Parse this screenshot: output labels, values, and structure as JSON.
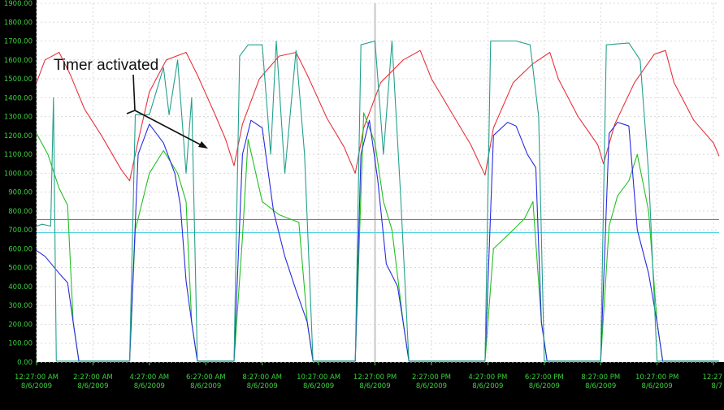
{
  "chart_data": {
    "type": "line",
    "title": "",
    "xlabel": "",
    "ylabel": "",
    "annotation": "Timer activated",
    "colors": {
      "background": "#ffffff",
      "axis_band": "#000000",
      "tick_text": "#3cd23c",
      "grid": "#d8d8d8",
      "cursor": "#c8c8c8",
      "red": "#e8323c",
      "blue": "#2a2ae0",
      "teal": "#23a08c",
      "green": "#23c023",
      "magenta": "#e632e6",
      "cyan": "#50d2e6"
    },
    "grid": true,
    "ylim": [
      0,
      1900
    ],
    "yticks": [
      "0.00",
      "100.00",
      "200.00",
      "300.00",
      "400.00",
      "500.00",
      "600.00",
      "700.00",
      "800.00",
      "900.00",
      "1000.00",
      "1100.00",
      "1200.00",
      "1300.00",
      "1400.00",
      "1500.00",
      "1600.00",
      "1700.00",
      "1800.00",
      "1900.00"
    ],
    "xticks": [
      {
        "time": "12:27:00 AM",
        "date": "8/6/2009"
      },
      {
        "time": "2:27:00 AM",
        "date": "8/6/2009"
      },
      {
        "time": "4:27:00 AM",
        "date": "8/6/2009"
      },
      {
        "time": "6:27:00 AM",
        "date": "8/6/2009"
      },
      {
        "time": "8:27:00 AM",
        "date": "8/6/2009"
      },
      {
        "time": "10:27:00 AM",
        "date": "8/6/2009"
      },
      {
        "time": "12:27:00 PM",
        "date": "8/6/2009"
      },
      {
        "time": "2:27:00 PM",
        "date": "8/6/2009"
      },
      {
        "time": "4:27:00 PM",
        "date": "8/6/2009"
      },
      {
        "time": "6:27:00 PM",
        "date": "8/6/2009"
      },
      {
        "time": "8:27:00 PM",
        "date": "8/6/2009"
      },
      {
        "time": "10:27:00 PM",
        "date": "8/6/2009"
      },
      {
        "time": "12:27",
        "date": "8/7"
      }
    ],
    "xlim_hours": [
      0,
      24.2
    ],
    "cursor_hour": 12.0,
    "annotation_target_hours": [
      4.0,
      6.2
    ],
    "series": [
      {
        "color": "magenta",
        "values": [
          [
            0,
            755
          ],
          [
            24.2,
            755
          ]
        ]
      },
      {
        "color": "cyan",
        "values": [
          [
            0,
            685
          ],
          [
            24.2,
            685
          ]
        ]
      },
      {
        "color": "red",
        "values": [
          [
            0,
            1480
          ],
          [
            0.3,
            1600
          ],
          [
            0.8,
            1640
          ],
          [
            1.2,
            1520
          ],
          [
            1.7,
            1340
          ],
          [
            2.3,
            1200
          ],
          [
            3.0,
            1020
          ],
          [
            3.3,
            960
          ],
          [
            3.6,
            1170
          ],
          [
            4.0,
            1430
          ],
          [
            4.6,
            1600
          ],
          [
            5.3,
            1640
          ],
          [
            5.7,
            1520
          ],
          [
            6.3,
            1320
          ],
          [
            6.7,
            1180
          ],
          [
            7.0,
            1040
          ],
          [
            7.3,
            1260
          ],
          [
            7.9,
            1500
          ],
          [
            8.6,
            1620
          ],
          [
            9.2,
            1640
          ],
          [
            9.6,
            1520
          ],
          [
            10.3,
            1290
          ],
          [
            10.9,
            1140
          ],
          [
            11.3,
            1000
          ],
          [
            11.6,
            1240
          ],
          [
            12.2,
            1480
          ],
          [
            13.0,
            1600
          ],
          [
            13.6,
            1650
          ],
          [
            14.0,
            1500
          ],
          [
            14.8,
            1300
          ],
          [
            15.4,
            1150
          ],
          [
            15.9,
            990
          ],
          [
            16.2,
            1240
          ],
          [
            16.9,
            1480
          ],
          [
            17.6,
            1580
          ],
          [
            18.2,
            1640
          ],
          [
            18.5,
            1500
          ],
          [
            19.2,
            1300
          ],
          [
            19.9,
            1150
          ],
          [
            20.1,
            1050
          ],
          [
            20.5,
            1260
          ],
          [
            21.2,
            1480
          ],
          [
            21.9,
            1630
          ],
          [
            22.3,
            1650
          ],
          [
            22.6,
            1480
          ],
          [
            23.3,
            1280
          ],
          [
            24.0,
            1160
          ],
          [
            24.2,
            1090
          ]
        ]
      },
      {
        "color": "green",
        "values": [
          [
            0,
            1210
          ],
          [
            0.4,
            1100
          ],
          [
            0.8,
            920
          ],
          [
            1.1,
            830
          ],
          [
            1.3,
            210
          ],
          [
            1.5,
            5
          ],
          [
            3.3,
            5
          ],
          [
            3.5,
            700
          ],
          [
            4.0,
            1000
          ],
          [
            4.5,
            1120
          ],
          [
            5.0,
            1000
          ],
          [
            5.3,
            850
          ],
          [
            5.5,
            210
          ],
          [
            5.7,
            5
          ],
          [
            7.0,
            5
          ],
          [
            7.3,
            660
          ],
          [
            7.5,
            1180
          ],
          [
            8.0,
            850
          ],
          [
            8.6,
            780
          ],
          [
            9.3,
            740
          ],
          [
            9.6,
            210
          ],
          [
            9.8,
            5
          ],
          [
            11.3,
            5
          ],
          [
            11.6,
            1320
          ],
          [
            12.0,
            1160
          ],
          [
            12.3,
            850
          ],
          [
            12.6,
            700
          ],
          [
            13.0,
            210
          ],
          [
            13.2,
            5
          ],
          [
            15.9,
            5
          ],
          [
            16.2,
            600
          ],
          [
            16.9,
            700
          ],
          [
            17.3,
            760
          ],
          [
            17.6,
            850
          ],
          [
            17.9,
            210
          ],
          [
            18.1,
            5
          ],
          [
            20.0,
            5
          ],
          [
            20.3,
            720
          ],
          [
            20.6,
            880
          ],
          [
            21.0,
            960
          ],
          [
            21.3,
            1100
          ],
          [
            21.7,
            800
          ],
          [
            22.0,
            210
          ],
          [
            22.2,
            5
          ],
          [
            24.2,
            5
          ]
        ]
      },
      {
        "color": "blue",
        "values": [
          [
            0,
            590
          ],
          [
            0.3,
            560
          ],
          [
            0.8,
            470
          ],
          [
            1.1,
            420
          ],
          [
            1.3,
            210
          ],
          [
            1.5,
            5
          ],
          [
            3.3,
            5
          ],
          [
            3.6,
            1100
          ],
          [
            4.0,
            1260
          ],
          [
            4.5,
            1160
          ],
          [
            4.9,
            1000
          ],
          [
            5.1,
            830
          ],
          [
            5.3,
            430
          ],
          [
            5.5,
            210
          ],
          [
            5.7,
            5
          ],
          [
            7.0,
            5
          ],
          [
            7.3,
            1100
          ],
          [
            7.6,
            1280
          ],
          [
            8.0,
            1240
          ],
          [
            8.4,
            800
          ],
          [
            8.8,
            560
          ],
          [
            9.2,
            380
          ],
          [
            9.6,
            210
          ],
          [
            9.8,
            5
          ],
          [
            11.3,
            5
          ],
          [
            11.5,
            1100
          ],
          [
            11.8,
            1280
          ],
          [
            12.1,
            960
          ],
          [
            12.4,
            520
          ],
          [
            12.8,
            400
          ],
          [
            13.0,
            210
          ],
          [
            13.2,
            5
          ],
          [
            15.9,
            5
          ],
          [
            16.2,
            1200
          ],
          [
            16.7,
            1270
          ],
          [
            17.0,
            1250
          ],
          [
            17.4,
            1100
          ],
          [
            17.7,
            1030
          ],
          [
            17.9,
            210
          ],
          [
            18.1,
            5
          ],
          [
            20.0,
            5
          ],
          [
            20.3,
            1210
          ],
          [
            20.6,
            1270
          ],
          [
            21.0,
            1250
          ],
          [
            21.3,
            700
          ],
          [
            21.7,
            470
          ],
          [
            22.0,
            210
          ],
          [
            22.2,
            5
          ],
          [
            24.2,
            5
          ]
        ]
      },
      {
        "color": "teal",
        "values": [
          [
            0,
            720
          ],
          [
            0.2,
            730
          ],
          [
            0.5,
            720
          ],
          [
            0.6,
            1400
          ],
          [
            0.7,
            5
          ],
          [
            3.3,
            5
          ],
          [
            3.5,
            1310
          ],
          [
            4.0,
            1310
          ],
          [
            4.5,
            1560
          ],
          [
            4.7,
            1310
          ],
          [
            5.0,
            1600
          ],
          [
            5.3,
            1000
          ],
          [
            5.5,
            1400
          ],
          [
            5.7,
            5
          ],
          [
            7.0,
            5
          ],
          [
            7.2,
            1620
          ],
          [
            7.5,
            1680
          ],
          [
            8.0,
            1680
          ],
          [
            8.3,
            1100
          ],
          [
            8.5,
            1700
          ],
          [
            8.8,
            1000
          ],
          [
            9.2,
            1650
          ],
          [
            9.5,
            1100
          ],
          [
            9.8,
            5
          ],
          [
            11.3,
            5
          ],
          [
            11.5,
            1680
          ],
          [
            12.0,
            1700
          ],
          [
            12.3,
            1100
          ],
          [
            12.6,
            1700
          ],
          [
            12.9,
            900
          ],
          [
            13.2,
            5
          ],
          [
            15.9,
            5
          ],
          [
            16.1,
            1700
          ],
          [
            17.0,
            1700
          ],
          [
            17.5,
            1680
          ],
          [
            17.8,
            1300
          ],
          [
            18.0,
            5
          ],
          [
            20.0,
            5
          ],
          [
            20.2,
            1680
          ],
          [
            21.0,
            1690
          ],
          [
            21.4,
            1600
          ],
          [
            21.7,
            1000
          ],
          [
            22.0,
            5
          ],
          [
            24.2,
            5
          ]
        ]
      }
    ]
  }
}
